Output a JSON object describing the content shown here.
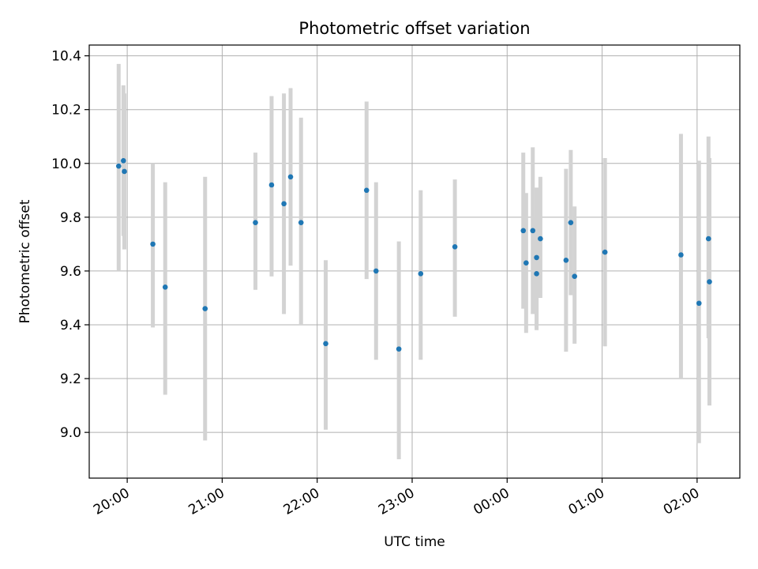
{
  "chart_data": {
    "type": "scatter",
    "title": "Photometric offset variation",
    "xlabel": "UTC time",
    "ylabel": "Photometric offset",
    "x_unit": "hours since 20:00 UTC",
    "xlim": [
      -0.4,
      6.45
    ],
    "ylim": [
      8.83,
      10.44
    ],
    "grid": true,
    "x_ticks": [
      {
        "value": 0,
        "label": "20:00"
      },
      {
        "value": 1,
        "label": "21:00"
      },
      {
        "value": 2,
        "label": "22:00"
      },
      {
        "value": 3,
        "label": "23:00"
      },
      {
        "value": 4,
        "label": "00:00"
      },
      {
        "value": 5,
        "label": "01:00"
      },
      {
        "value": 6,
        "label": "02:00"
      }
    ],
    "y_ticks": [
      {
        "value": 9.0,
        "label": "9.0"
      },
      {
        "value": 9.2,
        "label": "9.2"
      },
      {
        "value": 9.4,
        "label": "9.4"
      },
      {
        "value": 9.6,
        "label": "9.6"
      },
      {
        "value": 9.8,
        "label": "9.8"
      },
      {
        "value": 10.0,
        "label": "10.0"
      },
      {
        "value": 10.2,
        "label": "10.2"
      },
      {
        "value": 10.4,
        "label": "10.4"
      }
    ],
    "marker_color": "#1f77b4",
    "errorbar_color": "#d3d3d3",
    "series": [
      {
        "name": "Photometric offset",
        "points": [
          {
            "x": -0.09,
            "y": 9.99,
            "err_low": 9.6,
            "err_high": 10.37
          },
          {
            "x": -0.04,
            "y": 10.01,
            "err_low": 9.73,
            "err_high": 10.29
          },
          {
            "x": -0.03,
            "y": 9.97,
            "err_low": 9.68,
            "err_high": 10.26
          },
          {
            "x": 0.27,
            "y": 9.7,
            "err_low": 9.39,
            "err_high": 10.0
          },
          {
            "x": 0.4,
            "y": 9.54,
            "err_low": 9.14,
            "err_high": 9.93
          },
          {
            "x": 0.82,
            "y": 9.46,
            "err_low": 8.97,
            "err_high": 9.95
          },
          {
            "x": 1.35,
            "y": 9.78,
            "err_low": 9.53,
            "err_high": 10.04
          },
          {
            "x": 1.52,
            "y": 9.92,
            "err_low": 9.58,
            "err_high": 10.25
          },
          {
            "x": 1.65,
            "y": 9.85,
            "err_low": 9.44,
            "err_high": 10.26
          },
          {
            "x": 1.72,
            "y": 9.95,
            "err_low": 9.62,
            "err_high": 10.28
          },
          {
            "x": 1.83,
            "y": 9.78,
            "err_low": 9.4,
            "err_high": 10.17
          },
          {
            "x": 2.09,
            "y": 9.33,
            "err_low": 9.01,
            "err_high": 9.64
          },
          {
            "x": 2.52,
            "y": 9.9,
            "err_low": 9.57,
            "err_high": 10.23
          },
          {
            "x": 2.62,
            "y": 9.6,
            "err_low": 9.27,
            "err_high": 9.93
          },
          {
            "x": 2.86,
            "y": 9.31,
            "err_low": 8.9,
            "err_high": 9.71
          },
          {
            "x": 3.09,
            "y": 9.59,
            "err_low": 9.27,
            "err_high": 9.9
          },
          {
            "x": 3.45,
            "y": 9.69,
            "err_low": 9.43,
            "err_high": 9.94
          },
          {
            "x": 4.17,
            "y": 9.75,
            "err_low": 9.46,
            "err_high": 10.04
          },
          {
            "x": 4.2,
            "y": 9.63,
            "err_low": 9.37,
            "err_high": 9.89
          },
          {
            "x": 4.27,
            "y": 9.75,
            "err_low": 9.44,
            "err_high": 10.06
          },
          {
            "x": 4.31,
            "y": 9.65,
            "err_low": 9.38,
            "err_high": 9.91
          },
          {
            "x": 4.31,
            "y": 9.59,
            "err_low": 9.39,
            "err_high": 9.8
          },
          {
            "x": 4.35,
            "y": 9.72,
            "err_low": 9.5,
            "err_high": 9.95
          },
          {
            "x": 4.62,
            "y": 9.64,
            "err_low": 9.3,
            "err_high": 9.98
          },
          {
            "x": 4.67,
            "y": 9.78,
            "err_low": 9.51,
            "err_high": 10.05
          },
          {
            "x": 4.71,
            "y": 9.58,
            "err_low": 9.33,
            "err_high": 9.84
          },
          {
            "x": 5.03,
            "y": 9.67,
            "err_low": 9.32,
            "err_high": 10.02
          },
          {
            "x": 5.83,
            "y": 9.66,
            "err_low": 9.2,
            "err_high": 10.11
          },
          {
            "x": 6.02,
            "y": 9.48,
            "err_low": 8.96,
            "err_high": 10.01
          },
          {
            "x": 6.12,
            "y": 9.72,
            "err_low": 9.35,
            "err_high": 10.1
          },
          {
            "x": 6.13,
            "y": 9.56,
            "err_low": 9.1,
            "err_high": 10.02
          }
        ]
      }
    ]
  }
}
